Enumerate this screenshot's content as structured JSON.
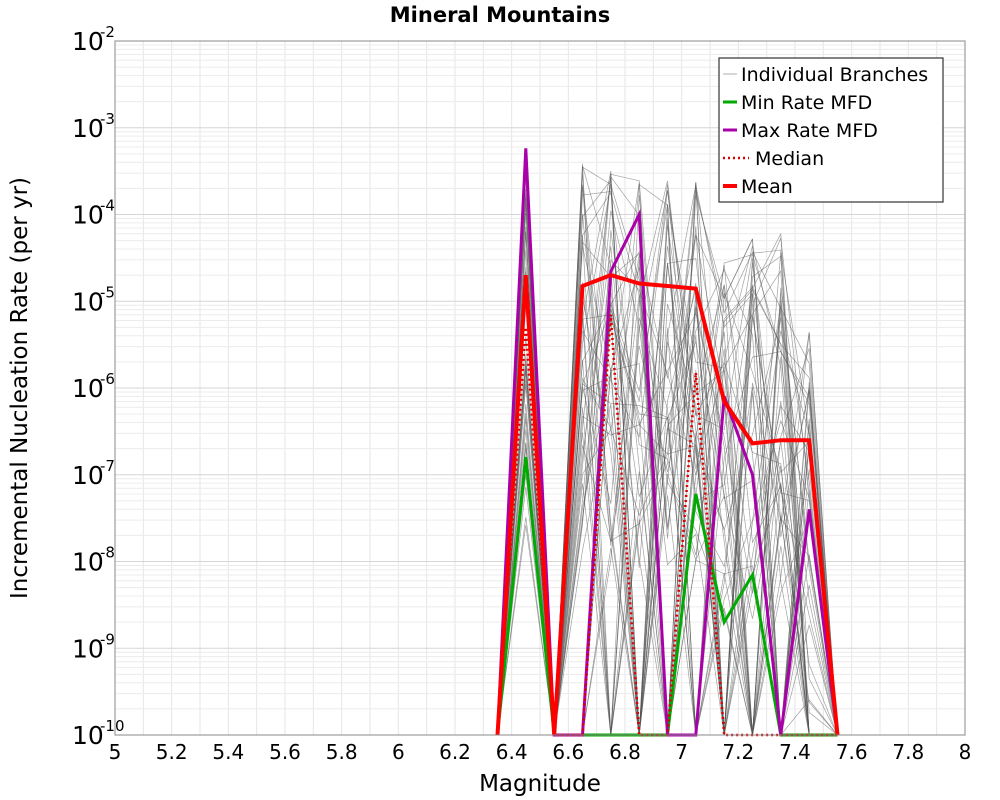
{
  "chart_data": {
    "type": "line",
    "title": "Mineral Mountains",
    "xlabel": "Magnitude",
    "ylabel": "Incremental Nucleation Rate (per yr)",
    "xlim": [
      5,
      8
    ],
    "ylim": [
      1e-10,
      0.01
    ],
    "yscale": "log",
    "grid": true,
    "legend_position": "top-right",
    "x_ticks": [
      "5",
      "5.2",
      "5.4",
      "5.6",
      "5.8",
      "6",
      "6.2",
      "6.4",
      "6.6",
      "6.8",
      "7",
      "7.2",
      "7.4",
      "7.6",
      "7.8",
      "8"
    ],
    "y_ticks": [
      {
        "base": "10",
        "exp": "-10",
        "value": 1e-10
      },
      {
        "base": "10",
        "exp": "-9",
        "value": 1e-09
      },
      {
        "base": "10",
        "exp": "-8",
        "value": 1e-08
      },
      {
        "base": "10",
        "exp": "-7",
        "value": 1e-07
      },
      {
        "base": "10",
        "exp": "-6",
        "value": 1e-06
      },
      {
        "base": "10",
        "exp": "-5",
        "value": 1e-05
      },
      {
        "base": "10",
        "exp": "-4",
        "value": 0.0001
      },
      {
        "base": "10",
        "exp": "-3",
        "value": 0.001
      },
      {
        "base": "10",
        "exp": "-2",
        "value": 0.01
      }
    ],
    "series": [
      {
        "name": "Individual Branches",
        "color": "#555555",
        "style": "thin",
        "count_drawn": 60,
        "x": [
          6.35,
          6.45,
          6.55,
          6.65,
          6.75,
          6.85,
          6.95,
          7.05,
          7.15,
          7.25,
          7.35,
          7.45,
          7.55
        ],
        "envelope_max": [
          1e-10,
          0.00058,
          1e-10,
          0.0004,
          0.00032,
          0.00025,
          0.00025,
          0.00024,
          5e-05,
          5.5e-05,
          6e-05,
          4.5e-06,
          1e-10
        ],
        "envelope_min": [
          1e-10,
          1e-10,
          1e-10,
          1e-10,
          1e-10,
          1e-10,
          1e-10,
          1e-10,
          1e-10,
          1e-10,
          1e-10,
          1e-10,
          1e-10
        ]
      },
      {
        "name": "Min Rate MFD",
        "color": "#00aa00",
        "style": "solid",
        "x": [
          6.35,
          6.45,
          6.55,
          6.65,
          6.75,
          6.85,
          6.95,
          7.05,
          7.15,
          7.25,
          7.35,
          7.45,
          7.55
        ],
        "values": [
          1e-10,
          1.6e-07,
          1e-10,
          1e-10,
          1e-10,
          1e-10,
          1e-10,
          6e-08,
          2e-09,
          7e-09,
          1e-10,
          1e-10,
          1e-10
        ]
      },
      {
        "name": "Max Rate MFD",
        "color": "#aa00aa",
        "style": "solid",
        "x": [
          6.35,
          6.45,
          6.55,
          6.65,
          6.75,
          6.85,
          6.95,
          7.05,
          7.15,
          7.25,
          7.35,
          7.45,
          7.55
        ],
        "values": [
          1e-10,
          0.00058,
          1e-10,
          1e-10,
          2.2e-05,
          0.0001,
          1e-10,
          1e-10,
          8e-07,
          1e-07,
          1e-10,
          4e-08,
          1e-10
        ]
      },
      {
        "name": "Median",
        "color": "#dd0000",
        "style": "dotted",
        "x": [
          6.35,
          6.45,
          6.55,
          6.65,
          6.75,
          6.85,
          6.95,
          7.05,
          7.15,
          7.25,
          7.35,
          7.45,
          7.55
        ],
        "values": [
          1e-10,
          5e-06,
          1e-10,
          1e-10,
          7e-06,
          1e-10,
          1e-10,
          1.5e-06,
          1e-10,
          1e-10,
          1e-10,
          1e-10,
          1e-10
        ]
      },
      {
        "name": "Mean",
        "color": "#ff0000",
        "style": "thick",
        "x": [
          6.35,
          6.45,
          6.55,
          6.65,
          6.75,
          6.85,
          6.95,
          7.05,
          7.15,
          7.25,
          7.35,
          7.45,
          7.55
        ],
        "values": [
          1e-10,
          2e-05,
          1e-10,
          1.5e-05,
          2e-05,
          1.6e-05,
          1.5e-05,
          1.4e-05,
          7e-07,
          2.3e-07,
          2.5e-07,
          2.5e-07,
          1e-10
        ]
      }
    ]
  }
}
